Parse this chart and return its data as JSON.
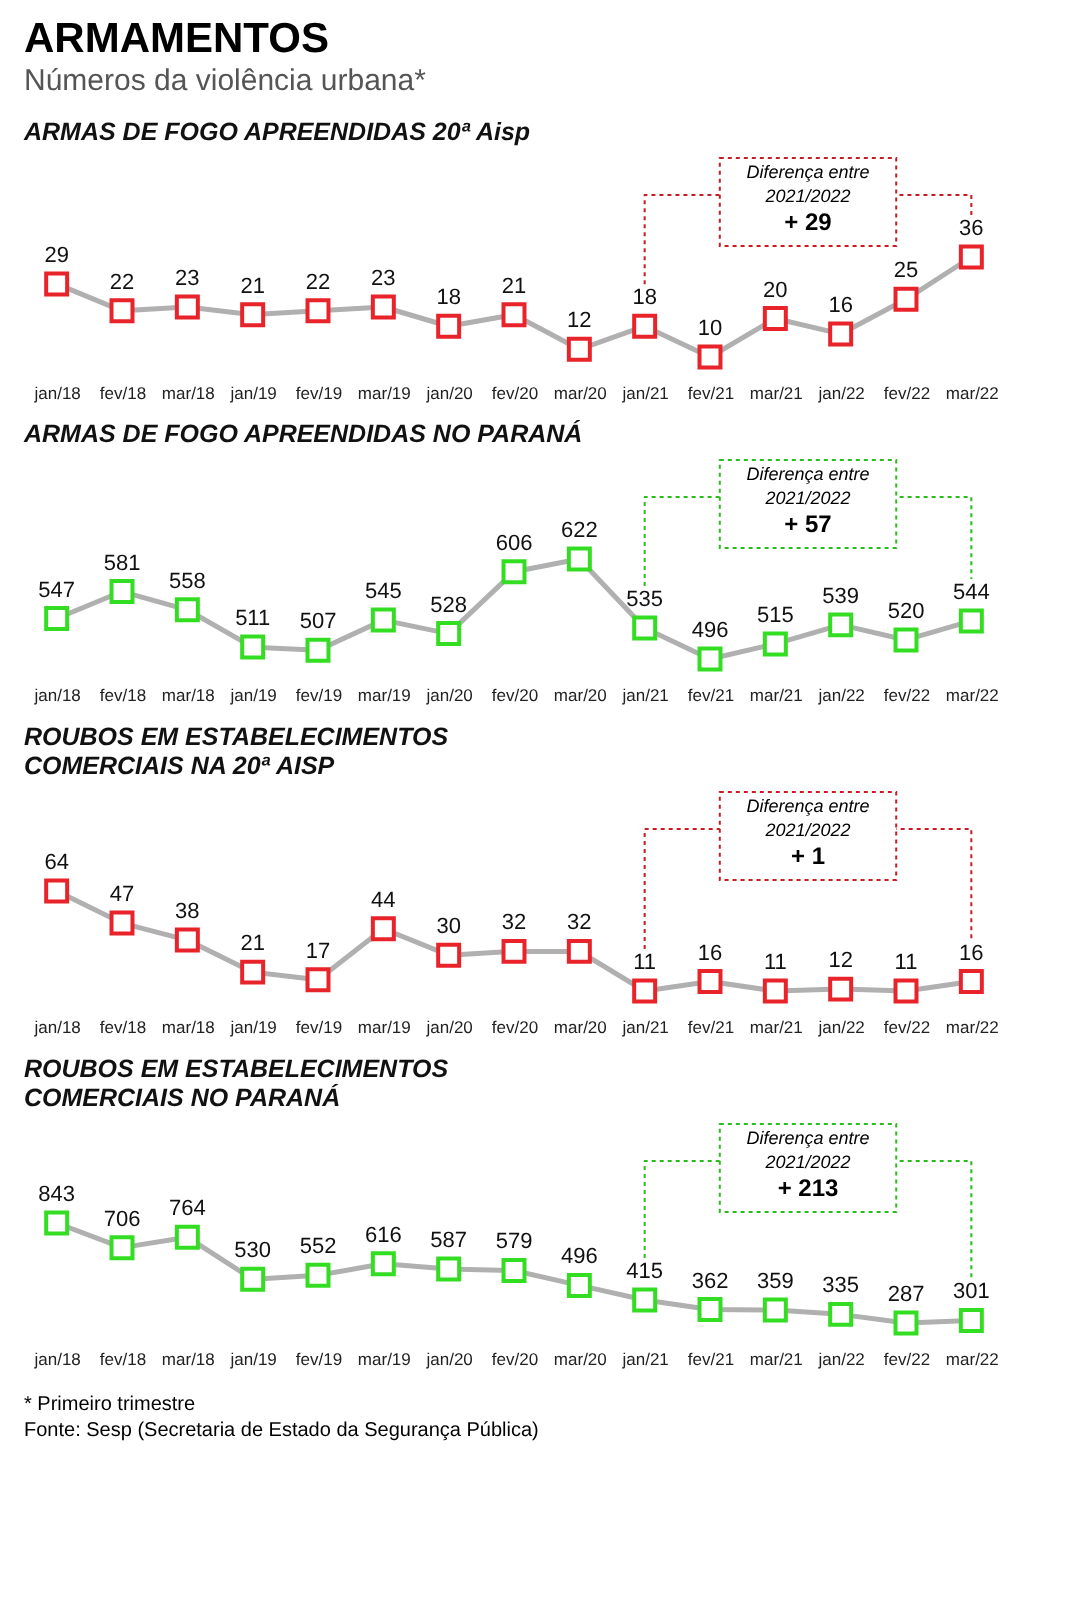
{
  "chart_data": [
    {
      "type": "other",
      "title": "ARMAMENTOS",
      "subtitle": "Números da violência urbana*"
    },
    {
      "type": "line",
      "title": "ARMAS DE FOGO APREENDIDAS 20ª Aisp",
      "categories": [
        "jan/18",
        "fev/18",
        "mar/18",
        "jan/19",
        "fev/19",
        "mar/19",
        "jan/20",
        "fev/20",
        "mar/20",
        "jan/21",
        "fev/21",
        "mar/21",
        "jan/22",
        "fev/22",
        "mar/22"
      ],
      "series": [
        {
          "color": "#e8232a",
          "values": [
            29,
            22,
            23,
            21,
            22,
            23,
            18,
            21,
            12,
            18,
            10,
            20,
            16,
            25,
            36
          ]
        }
      ],
      "data_labels": true,
      "marker": "square",
      "grid": false,
      "annotations": [
        "Diferença entre 2021/2022",
        "+ 29"
      ]
    },
    {
      "type": "line",
      "title": "ARMAS DE FOGO APREENDIDAS NO PARANÁ",
      "categories": [
        "jan/18",
        "fev/18",
        "mar/18",
        "jan/19",
        "fev/19",
        "mar/19",
        "jan/20",
        "fev/20",
        "mar/20",
        "jan/21",
        "fev/21",
        "mar/21",
        "jan/22",
        "fev/22",
        "mar/22"
      ],
      "series": [
        {
          "color": "#33dd22",
          "values": [
            547,
            581,
            558,
            511,
            507,
            545,
            528,
            606,
            622,
            535,
            496,
            515,
            539,
            520,
            544
          ]
        }
      ],
      "data_labels": true,
      "marker": "square",
      "grid": false,
      "annotations": [
        "Diferença entre 2021/2022",
        "+ 57"
      ]
    },
    {
      "type": "line",
      "title": "ROUBOS EM ESTABELECIMENTOS COMERCIAIS NA 20ª AISP",
      "categories": [
        "jan/18",
        "fev/18",
        "mar/18",
        "jan/19",
        "fev/19",
        "mar/19",
        "jan/20",
        "fev/20",
        "mar/20",
        "jan/21",
        "fev/21",
        "mar/21",
        "jan/22",
        "fev/22",
        "mar/22"
      ],
      "series": [
        {
          "color": "#e8232a",
          "values": [
            64,
            47,
            38,
            21,
            17,
            44,
            30,
            32,
            32,
            11,
            16,
            11,
            12,
            11,
            16
          ]
        }
      ],
      "data_labels": true,
      "marker": "square",
      "grid": false,
      "annotations": [
        "Diferença entre 2021/2022",
        "+ 1"
      ]
    },
    {
      "type": "line",
      "title": "ROUBOS EM ESTABELECIMENTOS COMERCIAIS NO PARANÁ",
      "categories": [
        "jan/18",
        "fev/18",
        "mar/18",
        "jan/19",
        "fev/19",
        "mar/19",
        "jan/20",
        "fev/20",
        "mar/20",
        "jan/21",
        "fev/21",
        "mar/21",
        "jan/22",
        "fev/22",
        "mar/22"
      ],
      "series": [
        {
          "color": "#33dd22",
          "values": [
            843,
            706,
            764,
            530,
            552,
            616,
            587,
            579,
            496,
            415,
            362,
            359,
            335,
            287,
            301
          ]
        }
      ],
      "data_labels": true,
      "marker": "square",
      "grid": false,
      "annotations": [
        "Diferença entre 2021/2022",
        "+ 213"
      ]
    },
    {
      "type": "other",
      "annotations": [
        "* Primeiro trimestre",
        "Fonte: Sesp (Secretaria de Estado da Segurança Pública)"
      ]
    }
  ]
}
